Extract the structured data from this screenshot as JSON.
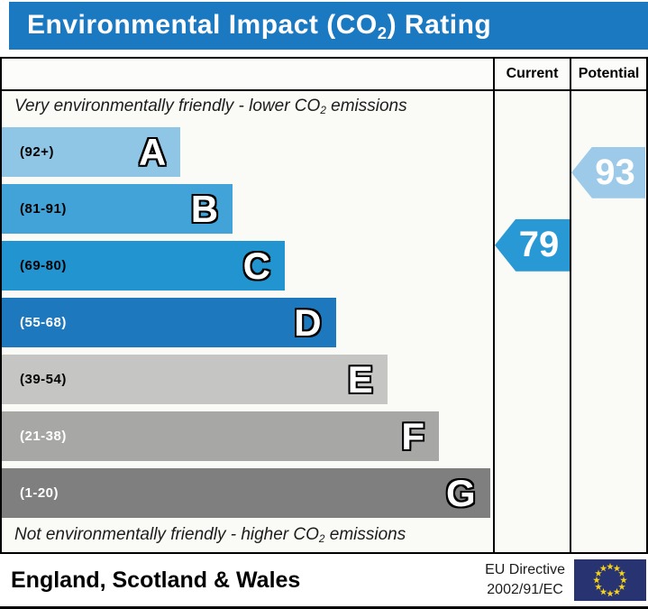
{
  "title": {
    "prefix": "Environmental Impact (CO",
    "sub": "2",
    "suffix": ") Rating"
  },
  "columns": {
    "current": "Current",
    "potential": "Potential"
  },
  "top_note": {
    "prefix": "Very environmentally friendly - lower CO",
    "sub": "2",
    "suffix": " emissions"
  },
  "bottom_note": {
    "prefix": "Not environmentally friendly - higher CO",
    "sub": "2",
    "suffix": " emissions"
  },
  "bands": [
    {
      "letter": "A",
      "range": "(92+)",
      "color": "#8fc6e6",
      "width_pct": 36.4,
      "label_color": "#000000"
    },
    {
      "letter": "B",
      "range": "(81-91)",
      "color": "#41a3d7",
      "width_pct": 47.0,
      "label_color": "#000000"
    },
    {
      "letter": "C",
      "range": "(69-80)",
      "color": "#2295d0",
      "width_pct": 57.6,
      "label_color": "#000000"
    },
    {
      "letter": "D",
      "range": "(55-68)",
      "color": "#1d78bd",
      "width_pct": 68.0,
      "label_color": "#ffffff"
    },
    {
      "letter": "E",
      "range": "(39-54)",
      "color": "#c5c5c3",
      "width_pct": 78.5,
      "label_color": "#000000"
    },
    {
      "letter": "F",
      "range": "(21-38)",
      "color": "#a7a7a5",
      "width_pct": 89.0,
      "label_color": "#ffffff"
    },
    {
      "letter": "G",
      "range": "(1-20)",
      "color": "#7f7f7f",
      "width_pct": 99.4,
      "label_color": "#ffffff"
    }
  ],
  "current": {
    "value": "79",
    "color": "#2899d4"
  },
  "potential": {
    "value": "93",
    "color": "#9ccae8"
  },
  "footer": {
    "region": "England, Scotland & Wales",
    "directive_line1": "EU Directive",
    "directive_line2": "2002/91/EC",
    "flag_colors": {
      "field": "#283371",
      "stars": "#f8d21a"
    }
  },
  "chart_data": {
    "type": "bar",
    "title": "Environmental Impact (CO2) Rating",
    "categories": [
      "A",
      "B",
      "C",
      "D",
      "E",
      "F",
      "G"
    ],
    "band_ranges": [
      "92+",
      "81-91",
      "69-80",
      "55-68",
      "39-54",
      "21-38",
      "1-20"
    ],
    "bar_width_percent": [
      36.4,
      47.0,
      57.6,
      68.0,
      78.5,
      89.0,
      99.4
    ],
    "series": [
      {
        "name": "Current",
        "values": [
          79
        ]
      },
      {
        "name": "Potential",
        "values": [
          93
        ]
      }
    ],
    "annotations": [
      "Very environmentally friendly - lower CO2 emissions",
      "Not environmentally friendly - higher CO2 emissions"
    ],
    "footer": "England, Scotland & Wales | EU Directive 2002/91/EC",
    "value_range": [
      1,
      100
    ],
    "legend_position": "top-right-columns",
    "grid": false
  }
}
